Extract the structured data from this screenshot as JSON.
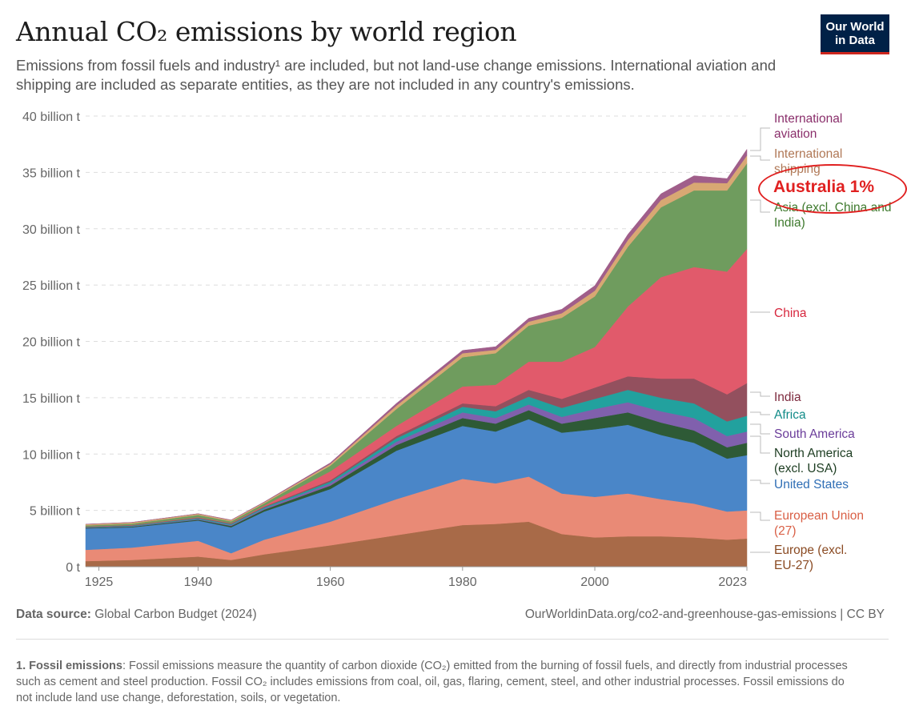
{
  "header": {
    "title": "Annual CO₂ emissions by world region",
    "subtitle": "Emissions from fossil fuels and industry¹ are included, but not land-use change emissions. International aviation and shipping are included as separate entities, as they are not included in any country's emissions.",
    "logo": "Our World in Data"
  },
  "annotation": {
    "text": "Australia 1%",
    "color": "#e02020"
  },
  "footer": {
    "source_label": "Data source:",
    "source": "Global Carbon Budget (2024)",
    "url": "OurWorldinData.org/co2-and-greenhouse-gas-emissions",
    "license": "| CC BY",
    "footnote_label": "1. Fossil emissions",
    "footnote": ": Fossil emissions measure the quantity of carbon dioxide (CO₂) emitted from the burning of fossil fuels, and directly from industrial processes such as cement and steel production. Fossil CO₂ includes emissions from coal, oil, gas, flaring, cement, steel, and other industrial processes. Fossil emissions do not include land use change, deforestation, soils, or vegetation."
  },
  "chart_data": {
    "type": "area",
    "stacked": true,
    "title": "Annual CO₂ emissions by world region",
    "ylim": [
      0,
      40
    ],
    "yticks": [
      0,
      5,
      10,
      15,
      20,
      25,
      30,
      35,
      40
    ],
    "ytick_labels": [
      "0 t",
      "5 billion t",
      "10 billion t",
      "15 billion t",
      "20 billion t",
      "25 billion t",
      "30 billion t",
      "35 billion t",
      "40 billion t"
    ],
    "xlim": [
      1923,
      2023
    ],
    "xticks": [
      1925,
      1940,
      1960,
      1980,
      2000,
      2023
    ],
    "grid": "horizontal dashed",
    "legend": "right, inline labels",
    "x": [
      1923,
      1930,
      1940,
      1945,
      1950,
      1960,
      1970,
      1980,
      1985,
      1990,
      1995,
      2000,
      2005,
      2010,
      2015,
      2020,
      2023
    ],
    "series": [
      {
        "name": "Europe (excl. EU-27)",
        "color": "#a86a48",
        "values": [
          0.5,
          0.6,
          0.9,
          0.6,
          1.1,
          1.9,
          2.8,
          3.7,
          3.8,
          4.0,
          2.9,
          2.6,
          2.7,
          2.7,
          2.6,
          2.4,
          2.5
        ]
      },
      {
        "name": "European Union (27)",
        "color": "#e98a76",
        "values": [
          1.0,
          1.1,
          1.4,
          0.6,
          1.3,
          2.1,
          3.2,
          4.1,
          3.6,
          4.0,
          3.6,
          3.6,
          3.8,
          3.3,
          3.0,
          2.5,
          2.5
        ]
      },
      {
        "name": "United States",
        "color": "#4a86c8",
        "values": [
          1.9,
          1.8,
          1.8,
          2.3,
          2.5,
          2.9,
          4.3,
          4.7,
          4.6,
          5.1,
          5.4,
          6.0,
          6.1,
          5.7,
          5.4,
          4.7,
          4.9
        ]
      },
      {
        "name": "North America (excl. USA)",
        "color": "#2e5a36",
        "values": [
          0.05,
          0.06,
          0.08,
          0.12,
          0.17,
          0.3,
          0.5,
          0.7,
          0.7,
          0.8,
          0.8,
          1.0,
          1.1,
          1.1,
          1.1,
          1.0,
          1.1
        ]
      },
      {
        "name": "South America",
        "color": "#8060ad",
        "values": [
          0.03,
          0.04,
          0.06,
          0.08,
          0.1,
          0.2,
          0.3,
          0.5,
          0.5,
          0.5,
          0.6,
          0.8,
          0.9,
          1.0,
          1.1,
          1.0,
          1.0
        ]
      },
      {
        "name": "Africa",
        "color": "#22a19e",
        "values": [
          0.04,
          0.05,
          0.07,
          0.09,
          0.1,
          0.15,
          0.3,
          0.5,
          0.6,
          0.7,
          0.8,
          0.9,
          1.1,
          1.2,
          1.3,
          1.3,
          1.4
        ]
      },
      {
        "name": "India",
        "color": "#93505e",
        "values": [
          0.03,
          0.04,
          0.05,
          0.06,
          0.07,
          0.12,
          0.2,
          0.3,
          0.45,
          0.6,
          0.8,
          1.0,
          1.2,
          1.7,
          2.2,
          2.4,
          2.9
        ]
      },
      {
        "name": "China",
        "color": "#e15a6b",
        "values": [
          0.02,
          0.02,
          0.04,
          0.03,
          0.08,
          0.8,
          0.9,
          1.5,
          1.9,
          2.5,
          3.3,
          3.6,
          6.2,
          9.0,
          9.9,
          10.9,
          11.9
        ]
      },
      {
        "name": "Asia (excl. China and India)",
        "color": "#6f9c5e",
        "values": [
          0.1,
          0.12,
          0.2,
          0.15,
          0.2,
          0.5,
          1.5,
          2.6,
          2.8,
          3.2,
          3.9,
          4.5,
          5.3,
          6.2,
          6.8,
          7.2,
          7.6
        ]
      },
      {
        "name": "International shipping",
        "color": "#d8a873",
        "values": [
          0.1,
          0.1,
          0.1,
          0.1,
          0.1,
          0.15,
          0.3,
          0.35,
          0.3,
          0.35,
          0.4,
          0.5,
          0.6,
          0.65,
          0.7,
          0.65,
          0.7
        ]
      },
      {
        "name": "International aviation",
        "color": "#a05e8a",
        "values": [
          0.01,
          0.01,
          0.01,
          0.02,
          0.03,
          0.1,
          0.2,
          0.25,
          0.28,
          0.3,
          0.35,
          0.45,
          0.5,
          0.55,
          0.6,
          0.4,
          0.55
        ]
      }
    ]
  }
}
